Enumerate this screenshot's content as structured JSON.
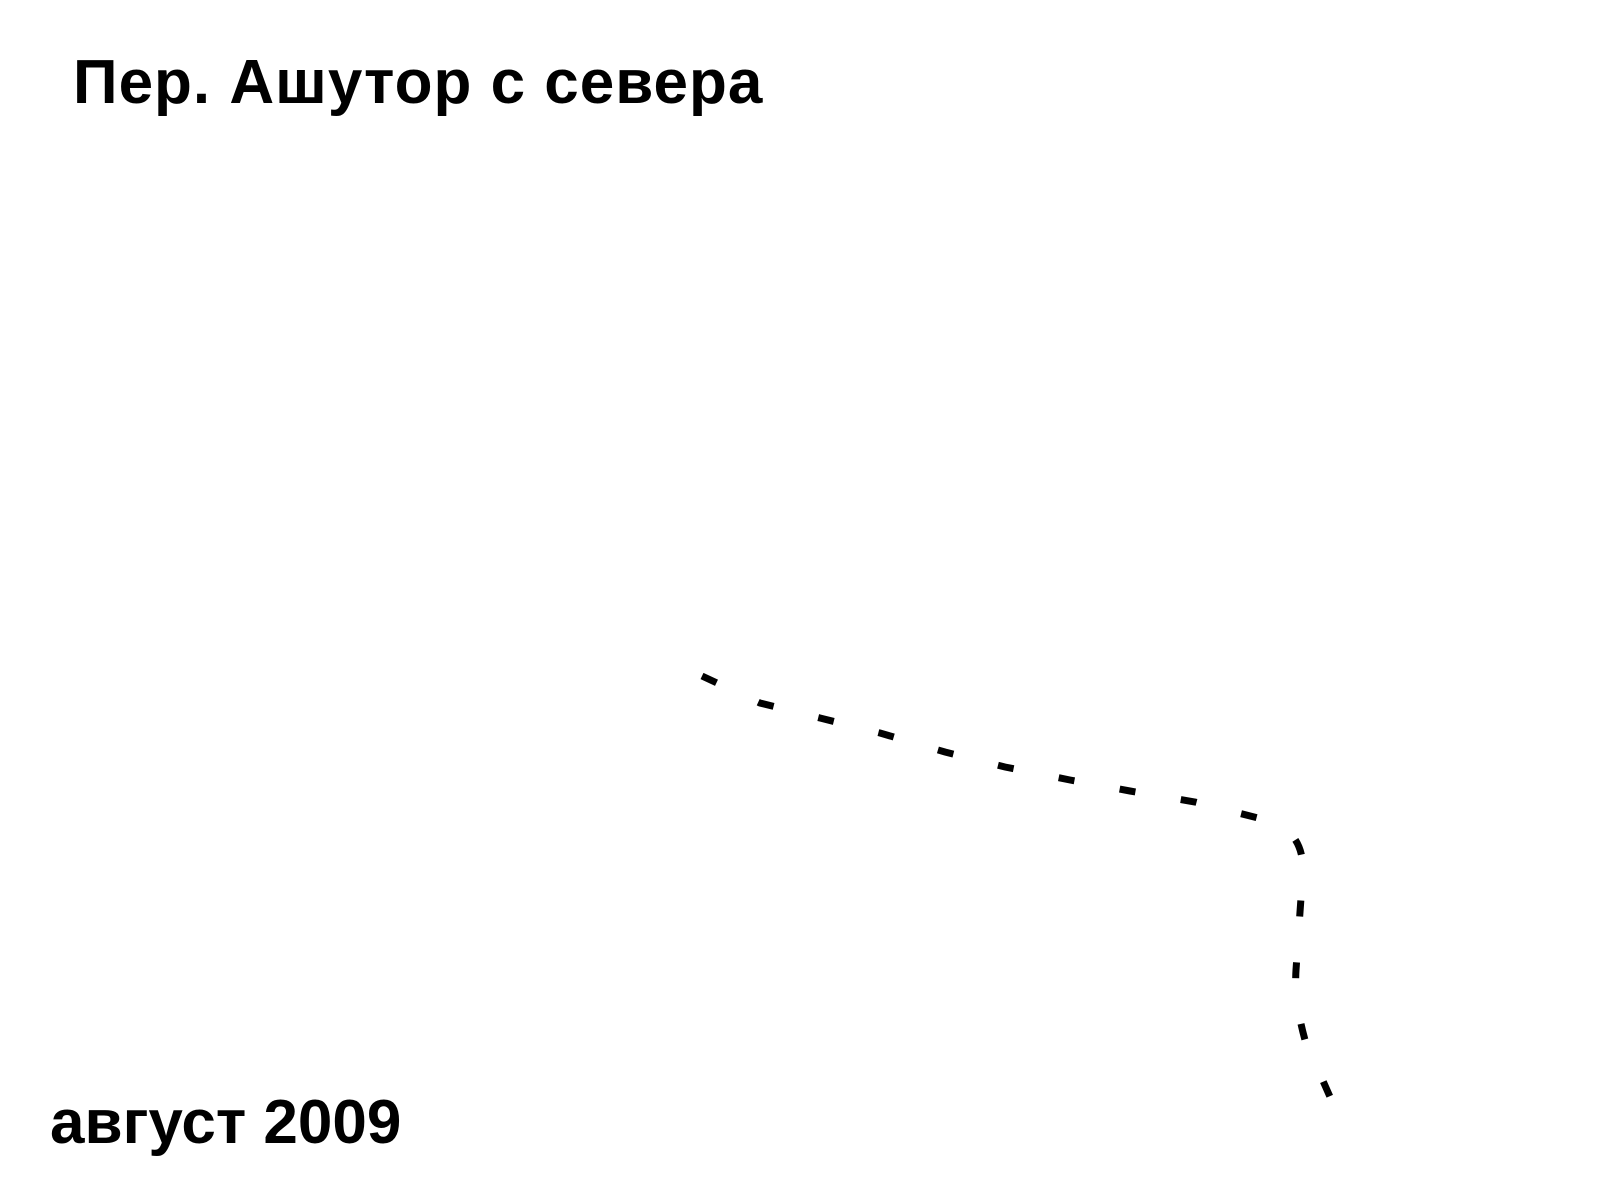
{
  "title": "Пер. Ашутор с севера",
  "date_label": "август 2009",
  "route_line": {
    "name": "route",
    "style": "dashed",
    "color": "#000000"
  }
}
